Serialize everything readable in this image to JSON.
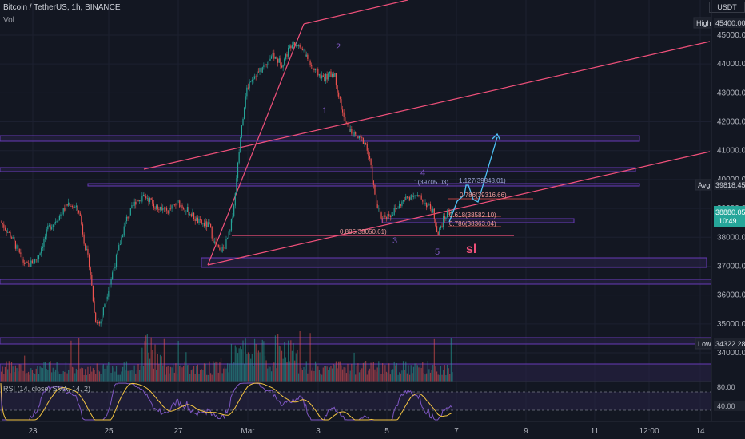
{
  "header": {
    "title": "Bitcoin / TetherUS, 1h, BINANCE",
    "vol_label": "Vol",
    "currency_label": "USDT"
  },
  "tags": {
    "high": {
      "label": "High",
      "value": "45400.00"
    },
    "avg": {
      "label": "Avg",
      "value": "39818.45"
    },
    "current": {
      "price": "38880.05",
      "timer": "10:49"
    },
    "low": {
      "label": "Low",
      "value": "34322.28"
    },
    "rsi_a": "80.00",
    "rsi_b": "40.00"
  },
  "colors": {
    "background": "#131722",
    "up": "#26a69a",
    "down": "#ef5350",
    "trendline": "#f0507a",
    "zone": "#673ab7",
    "projection": "#4fc3f7",
    "rsi_line": "#7e57c2",
    "rsi_ma": "#f5c542",
    "sl": "#f0507a"
  },
  "rsi": {
    "label": "RSI (14, close, SMA, 14, 2)"
  },
  "annotations": {
    "waves": [
      "1",
      "2",
      "3",
      "4",
      "5"
    ],
    "sl": "sl",
    "fib_labels": [
      "1.127(39848.01)",
      "1(39705.03)",
      "0.786(39316.66)",
      "0.618(38582.10)",
      "0.786(38363.04)",
      "0.886(38050.61)"
    ]
  },
  "chart_data": {
    "type": "candlestick",
    "symbol": "Bitcoin / TetherUS",
    "interval": "1h",
    "exchange": "BINANCE",
    "y_axis": {
      "ticks": [
        "45000.00",
        "44000.00",
        "43000.00",
        "42000.00",
        "41000.00",
        "40000.00",
        "39000.00",
        "38000.00",
        "37000.00",
        "36000.00",
        "35000.00",
        "34000.00"
      ],
      "range": [
        33300,
        46250
      ]
    },
    "x_axis": {
      "ticks": [
        "23",
        "25",
        "27",
        "Mar",
        "3",
        "5",
        "7",
        "9",
        "11",
        "12:00",
        "14"
      ]
    },
    "price_path": [
      [
        0,
        38500
      ],
      [
        2,
        38000
      ],
      [
        4,
        37200
      ],
      [
        5,
        37000
      ],
      [
        7,
        37300
      ],
      [
        9,
        38300
      ],
      [
        11,
        38700
      ],
      [
        13,
        39200
      ],
      [
        15,
        38900
      ],
      [
        16,
        37800
      ],
      [
        17,
        37000
      ],
      [
        18,
        35200
      ],
      [
        19,
        35000
      ],
      [
        20,
        35800
      ],
      [
        22,
        37200
      ],
      [
        24,
        38600
      ],
      [
        26,
        39300
      ],
      [
        28,
        39400
      ],
      [
        30,
        39000
      ],
      [
        32,
        38900
      ],
      [
        34,
        39200
      ],
      [
        36,
        38900
      ],
      [
        38,
        38500
      ],
      [
        40,
        38400
      ],
      [
        41,
        37800
      ],
      [
        42,
        37500
      ],
      [
        43,
        37700
      ],
      [
        44,
        38200
      ],
      [
        45,
        39500
      ],
      [
        46,
        41500
      ],
      [
        47,
        43000
      ],
      [
        48,
        43500
      ],
      [
        50,
        43800
      ],
      [
        52,
        44300
      ],
      [
        54,
        44000
      ],
      [
        56,
        44800
      ],
      [
        58,
        44500
      ],
      [
        60,
        43800
      ],
      [
        62,
        43500
      ],
      [
        64,
        43700
      ],
      [
        65,
        42800
      ],
      [
        66,
        42000
      ],
      [
        67,
        41700
      ],
      [
        68,
        41500
      ],
      [
        70,
        41300
      ],
      [
        71,
        40500
      ],
      [
        72,
        39200
      ],
      [
        73,
        38700
      ],
      [
        75,
        38800
      ],
      [
        77,
        39200
      ],
      [
        79,
        39500
      ],
      [
        81,
        39300
      ],
      [
        83,
        38900
      ],
      [
        84,
        38100
      ],
      [
        85,
        38600
      ],
      [
        86,
        38900
      ],
      [
        87,
        38850
      ]
    ],
    "volume_profile": "bars",
    "rsi": {
      "ticks": [
        "80.00",
        "40.00"
      ]
    }
  }
}
